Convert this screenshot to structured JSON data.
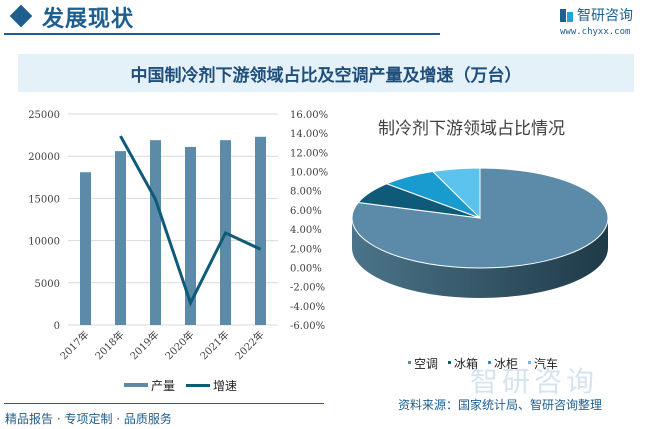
{
  "header": {
    "section_title": "发展现状",
    "brand_name": "智研咨询",
    "brand_url": "www.chyxx.com"
  },
  "title": "中国制冷剂下游领域占比及空调产量及增速（万台）",
  "colors": {
    "bar": "#5b8ba8",
    "line": "#0e5a78",
    "accent": "#1f5f8f",
    "pie": [
      "#5b8ba8",
      "#0e5a78",
      "#1a9bd0",
      "#5bc3ee"
    ]
  },
  "chart_data": [
    {
      "type": "bar+line",
      "title": "中国空调产量及增速（万台）",
      "categories": [
        "2017年",
        "2018年",
        "2019年",
        "2020年",
        "2021年",
        "2022年"
      ],
      "series": [
        {
          "name": "产量",
          "type": "bar",
          "axis": "left",
          "values": [
            18100,
            20600,
            21900,
            21100,
            21900,
            22300
          ]
        },
        {
          "name": "增速",
          "type": "line",
          "axis": "right",
          "values": [
            null,
            13.7,
            7.1,
            -3.7,
            3.6,
            1.9
          ]
        }
      ],
      "left_axis": {
        "ylim": [
          0,
          25000
        ],
        "ticks": [
          "0",
          "5000",
          "10000",
          "15000",
          "20000",
          "25000"
        ]
      },
      "right_axis": {
        "ylim": [
          -6,
          16
        ],
        "ticks": [
          "-6.00%",
          "-4.00%",
          "-2.00%",
          "0.00%",
          "2.00%",
          "4.00%",
          "6.00%",
          "8.00%",
          "10.00%",
          "12.00%",
          "14.00%",
          "16.00%"
        ]
      },
      "grid": true,
      "legend": [
        "产量",
        "增速"
      ],
      "legend_position": "bottom"
    },
    {
      "type": "pie",
      "title": "制冷剂下游领域占比情况",
      "labels": [
        "空调",
        "冰箱",
        "冰柜",
        "汽车"
      ],
      "values": [
        80,
        7,
        7,
        6
      ],
      "legend_position": "bottom"
    }
  ],
  "footer": {
    "left": "精品报告 · 专项定制 · 品质服务",
    "source": "资料来源：国家统计局、智研咨询整理",
    "watermark": "智研咨询"
  }
}
